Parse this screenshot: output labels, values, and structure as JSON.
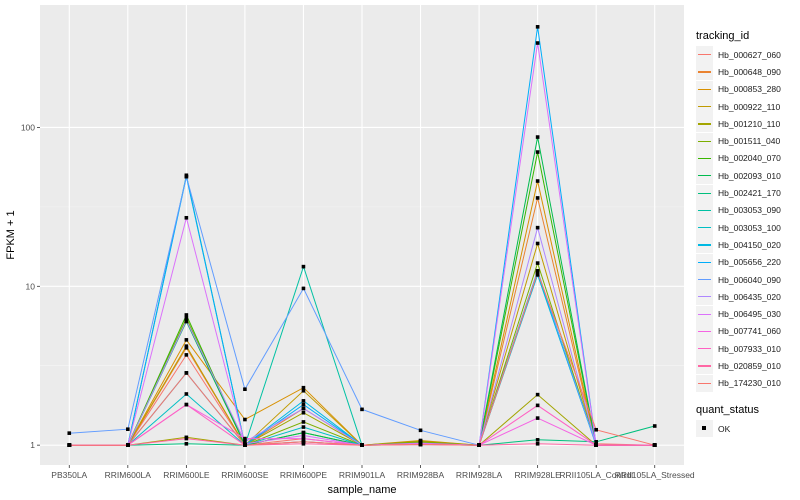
{
  "chart_data": {
    "type": "line",
    "title": "",
    "xlabel": "sample_name",
    "ylabel": "FPKM + 1",
    "yscale": "log10",
    "ylim": [
      0.75,
      590
    ],
    "yticks": [
      1,
      10,
      100
    ],
    "ytick_labels": [
      "1",
      "10",
      "100"
    ],
    "grid": true,
    "legend_position": "right",
    "categories": [
      "PB350LA",
      "RRIM600LA",
      "RRIM600LE",
      "RRIM600SE",
      "RRIM600PE",
      "RRIM901LA",
      "RRIM928BA",
      "RRIM928LA",
      "RRIM928LE",
      "RRII105LA_Control",
      "RRII105LA_Stressed"
    ],
    "legend_title": "tracking_id",
    "series": [
      {
        "name": "Hb_000627_060",
        "color": "#F8766D",
        "values": [
          1,
          1,
          3.7,
          1,
          1.1,
          1,
          1.02,
          1,
          12.2,
          1.02,
          1
        ]
      },
      {
        "name": "Hb_000648_090",
        "color": "#EA8331",
        "values": [
          1,
          1,
          4.1,
          1,
          1.7,
          1,
          1.05,
          1,
          36,
          1,
          1
        ]
      },
      {
        "name": "Hb_000853_280",
        "color": "#D89000",
        "values": [
          1,
          1,
          4.6,
          1.45,
          2.3,
          1,
          1.07,
          1,
          46,
          1,
          1
        ]
      },
      {
        "name": "Hb_000922_110",
        "color": "#C09B00",
        "values": [
          1,
          1,
          4.2,
          1,
          2.2,
          1,
          1.06,
          1,
          18.6,
          1,
          1
        ]
      },
      {
        "name": "Hb_001210_110",
        "color": "#A3A500",
        "values": [
          1,
          1,
          1.12,
          1,
          1.6,
          1,
          1.04,
          1,
          2.08,
          1,
          1
        ]
      },
      {
        "name": "Hb_001511_040",
        "color": "#7CAE00",
        "values": [
          1,
          1,
          6.3,
          1,
          1.4,
          1,
          1.05,
          1,
          14,
          1,
          1
        ]
      },
      {
        "name": "Hb_002040_070",
        "color": "#39B600",
        "values": [
          1,
          1,
          6.6,
          1,
          1.2,
          1,
          1.03,
          1,
          70,
          1,
          1
        ]
      },
      {
        "name": "Hb_002093_010",
        "color": "#00BB4E",
        "values": [
          1,
          1,
          6.0,
          1,
          1.2,
          1,
          1.02,
          1,
          87,
          1,
          1
        ]
      },
      {
        "name": "Hb_002421_170",
        "color": "#00BF7D",
        "values": [
          1,
          1,
          1.02,
          1,
          1.05,
          1,
          1.01,
          1,
          1.08,
          1.05,
          1.32
        ]
      },
      {
        "name": "Hb_003053_090",
        "color": "#00C1A3",
        "values": [
          1,
          1,
          50,
          1,
          13.3,
          1,
          1.02,
          1,
          12.5,
          1,
          1
        ]
      },
      {
        "name": "Hb_003053_100",
        "color": "#00BFC4",
        "values": [
          1,
          1,
          2.1,
          1,
          1.3,
          1,
          1.02,
          1,
          12,
          1,
          1
        ]
      },
      {
        "name": "Hb_004150_020",
        "color": "#00B9E3",
        "values": [
          1,
          1,
          2.85,
          1,
          1.9,
          1,
          1.02,
          1,
          11.8,
          1,
          1
        ]
      },
      {
        "name": "Hb_005656_220",
        "color": "#00ADFA",
        "values": [
          1,
          1,
          49,
          1,
          1.8,
          1,
          1.02,
          1,
          430,
          1,
          1
        ]
      },
      {
        "name": "Hb_006040_090",
        "color": "#619CFF",
        "values": [
          1.19,
          1.26,
          49,
          2.25,
          9.7,
          1.68,
          1.24,
          1,
          12.5,
          1,
          1
        ]
      },
      {
        "name": "Hb_006435_020",
        "color": "#AE87FF",
        "values": [
          1,
          1,
          6.1,
          1.05,
          1.7,
          1,
          1.03,
          1,
          23.4,
          1,
          1
        ]
      },
      {
        "name": "Hb_006495_030",
        "color": "#DB72FB",
        "values": [
          1,
          1,
          27,
          1.02,
          1.15,
          1,
          1.02,
          1,
          340,
          1,
          1
        ]
      },
      {
        "name": "Hb_007741_060",
        "color": "#F564E3",
        "values": [
          1,
          1,
          1.8,
          1.1,
          1.1,
          1,
          1.02,
          1,
          1.48,
          1,
          1
        ]
      },
      {
        "name": "Hb_007933_010",
        "color": "#FF61C3",
        "values": [
          1,
          1,
          1.8,
          1,
          1.05,
          1,
          1.01,
          1,
          1.78,
          1,
          1
        ]
      },
      {
        "name": "Hb_020859_010",
        "color": "#FF67A4",
        "values": [
          1,
          1,
          1.1,
          1,
          1.02,
          1,
          1.01,
          1,
          1.02,
          1,
          1
        ]
      },
      {
        "name": "Hb_174230_010",
        "color": "#F8766D",
        "values": [
          1,
          1,
          2.85,
          1,
          1.05,
          1,
          1.01,
          1,
          12.2,
          1.25,
          1
        ]
      }
    ],
    "legend2_title": "quant_status",
    "legend2_items": [
      "OK"
    ]
  }
}
